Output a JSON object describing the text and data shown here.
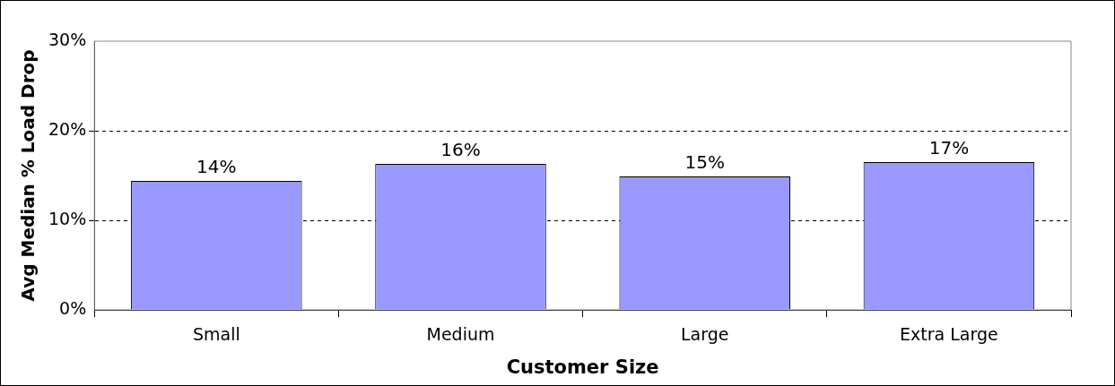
{
  "chart_data": {
    "type": "bar",
    "xlabel": "Customer Size",
    "ylabel": "Avg Median % Load Drop",
    "categories": [
      "Small",
      "Medium",
      "Large",
      "Extra Large"
    ],
    "values": [
      14.4,
      16.3,
      14.9,
      16.5
    ],
    "value_labels": [
      "14%",
      "16%",
      "15%",
      "17%"
    ],
    "color": "#9999ff",
    "ylim": [
      0,
      30
    ],
    "yticks": [
      {
        "value": 0,
        "label": "0%"
      },
      {
        "value": 10,
        "label": "10%"
      },
      {
        "value": 20,
        "label": "20%"
      },
      {
        "value": 30,
        "label": "30%"
      }
    ],
    "grid": "y",
    "legend": false
  }
}
